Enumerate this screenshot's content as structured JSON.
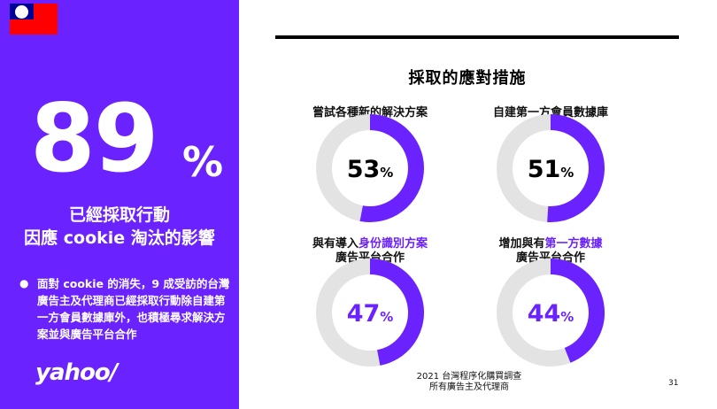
{
  "left": {
    "stat_value": "89",
    "stat_unit": "%",
    "headline_line1": "已經採取行動",
    "headline_line2": "因應 cookie 淘汰的影響",
    "bullet_text": "面對 cookie 的消失，9 成受訪的台灣廣告主及代理商已經採取行動除自建第一方會員數據庫外，也積極尋求解決方案並與廣告平台合作",
    "logo_text": "yahoo/",
    "flag_icon": "taiwan-flag-icon"
  },
  "colors": {
    "accent": "#6a22ff",
    "track": "#e3e3e3",
    "text": "#000000"
  },
  "chart_data": {
    "type": "pie",
    "title": "採取的應對措施",
    "series": [
      {
        "name": "嘗試各種新的解決方案",
        "value": 53,
        "value_color": "black",
        "label_lines": [
          [
            {
              "t": "嘗試各種新的解決方案",
              "hl": false
            }
          ]
        ]
      },
      {
        "name": "自建第一方會員數據庫",
        "value": 51,
        "value_color": "black",
        "label_lines": [
          [
            {
              "t": "自建第一方會員數據庫",
              "hl": false
            }
          ]
        ]
      },
      {
        "name": "與有導入身份識別方案廣告平台合作",
        "value": 47,
        "value_color": "purple",
        "label_lines": [
          [
            {
              "t": "與有導入",
              "hl": false
            },
            {
              "t": "身份識別方案",
              "hl": true
            }
          ],
          [
            {
              "t": "廣告平台合作",
              "hl": false
            }
          ]
        ]
      },
      {
        "name": "增加與有第一方數據廣告平台合作",
        "value": 44,
        "value_color": "purple",
        "label_lines": [
          [
            {
              "t": "增加與有",
              "hl": false
            },
            {
              "t": "第一方數據",
              "hl": true
            }
          ],
          [
            {
              "t": "廣告平台合作",
              "hl": false
            }
          ]
        ]
      }
    ],
    "value_unit": "%"
  },
  "footer": {
    "source_line1": "2021 台灣程序化購買調查",
    "source_line2": "所有廣告主及代理商",
    "page_number": "31"
  }
}
